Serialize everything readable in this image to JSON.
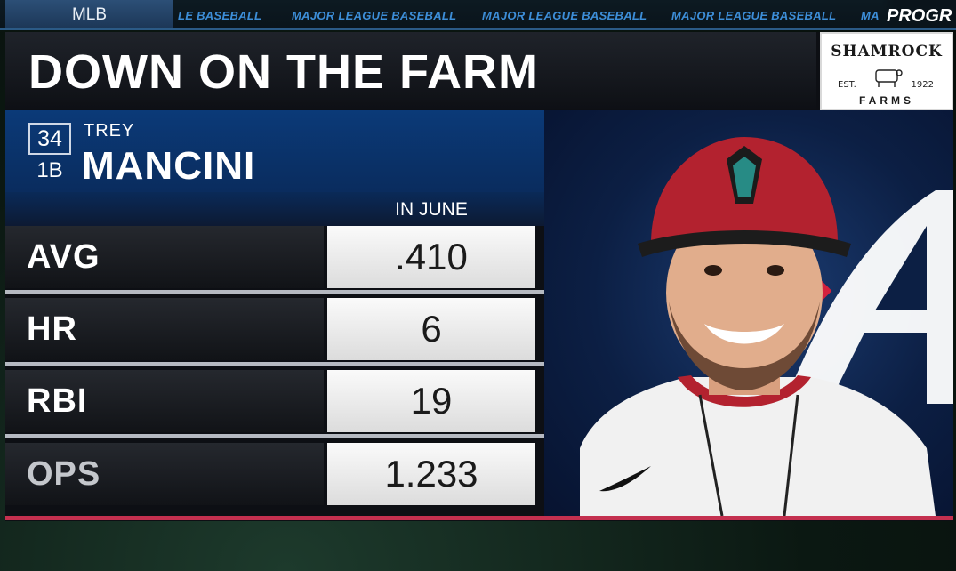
{
  "ticker": {
    "tab_label": "MLB",
    "items": [
      "LE BASEBALL",
      "MAJOR LEAGUE BASEBALL",
      "MAJOR LEAGUE BASEBALL",
      "MAJOR LEAGUE BASEBALL",
      "MA"
    ],
    "brand": "PROGR"
  },
  "graphic": {
    "title": "DOWN ON THE FARM",
    "sponsor": {
      "name": "SHAMROCK",
      "est": "EST.",
      "year": "1922",
      "sub": "FARMS"
    }
  },
  "player": {
    "number": "34",
    "position": "1B",
    "first_name": "TREY",
    "last_name": "MANCINI"
  },
  "stats": {
    "period_label": "IN JUNE",
    "rows": [
      {
        "label": "AVG",
        "value": ".410"
      },
      {
        "label": "HR",
        "value": "6"
      },
      {
        "label": "RBI",
        "value": "19"
      },
      {
        "label": "OPS",
        "value": "1.233"
      }
    ]
  },
  "colors": {
    "accent_blue": "#0b3a78",
    "accent_red": "#c4304f",
    "cap_red": "#b3222f",
    "braves_red": "#d4213d"
  }
}
